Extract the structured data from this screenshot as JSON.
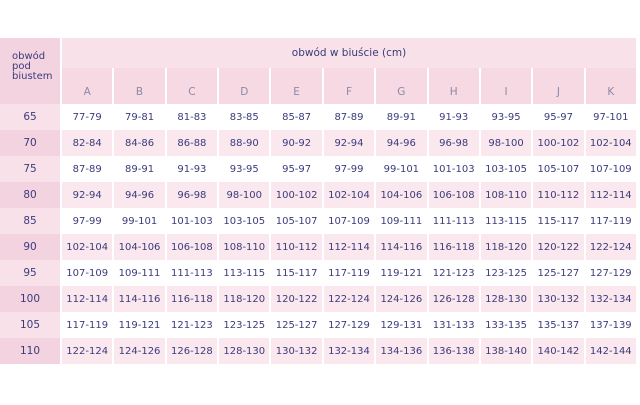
{
  "corner_label": "obwód pod biustem",
  "title": "obwód w biuście (cm)",
  "cups": [
    "A",
    "B",
    "C",
    "D",
    "E",
    "F",
    "G",
    "H",
    "I",
    "J",
    "K"
  ],
  "rows": [
    {
      "band": "65",
      "values": [
        "77-79",
        "79-81",
        "81-83",
        "83-85",
        "85-87",
        "87-89",
        "89-91",
        "91-93",
        "93-95",
        "95-97",
        "97-101"
      ]
    },
    {
      "band": "70",
      "values": [
        "82-84",
        "84-86",
        "86-88",
        "88-90",
        "90-92",
        "92-94",
        "94-96",
        "96-98",
        "98-100",
        "100-102",
        "102-104"
      ]
    },
    {
      "band": "75",
      "values": [
        "87-89",
        "89-91",
        "91-93",
        "93-95",
        "95-97",
        "97-99",
        "99-101",
        "101-103",
        "103-105",
        "105-107",
        "107-109"
      ]
    },
    {
      "band": "80",
      "values": [
        "92-94",
        "94-96",
        "96-98",
        "98-100",
        "100-102",
        "102-104",
        "104-106",
        "106-108",
        "108-110",
        "110-112",
        "112-114"
      ]
    },
    {
      "band": "85",
      "values": [
        "97-99",
        "99-101",
        "101-103",
        "103-105",
        "105-107",
        "107-109",
        "109-111",
        "111-113",
        "113-115",
        "115-117",
        "117-119"
      ]
    },
    {
      "band": "90",
      "values": [
        "102-104",
        "104-106",
        "106-108",
        "108-110",
        "110-112",
        "112-114",
        "114-116",
        "116-118",
        "118-120",
        "120-122",
        "122-124"
      ]
    },
    {
      "band": "95",
      "values": [
        "107-109",
        "109-111",
        "111-113",
        "113-115",
        "115-117",
        "117-119",
        "119-121",
        "121-123",
        "123-125",
        "125-127",
        "127-129"
      ]
    },
    {
      "band": "100",
      "values": [
        "112-114",
        "114-116",
        "116-118",
        "118-120",
        "120-122",
        "122-124",
        "124-126",
        "126-128",
        "128-130",
        "130-132",
        "132-134"
      ]
    },
    {
      "band": "105",
      "values": [
        "117-119",
        "119-121",
        "121-123",
        "123-125",
        "125-127",
        "127-129",
        "129-131",
        "131-133",
        "133-135",
        "135-137",
        "137-139"
      ]
    },
    {
      "band": "110",
      "values": [
        "122-124",
        "124-126",
        "126-128",
        "128-130",
        "130-132",
        "132-134",
        "134-136",
        "136-138",
        "138-140",
        "140-142",
        "142-144"
      ]
    }
  ]
}
